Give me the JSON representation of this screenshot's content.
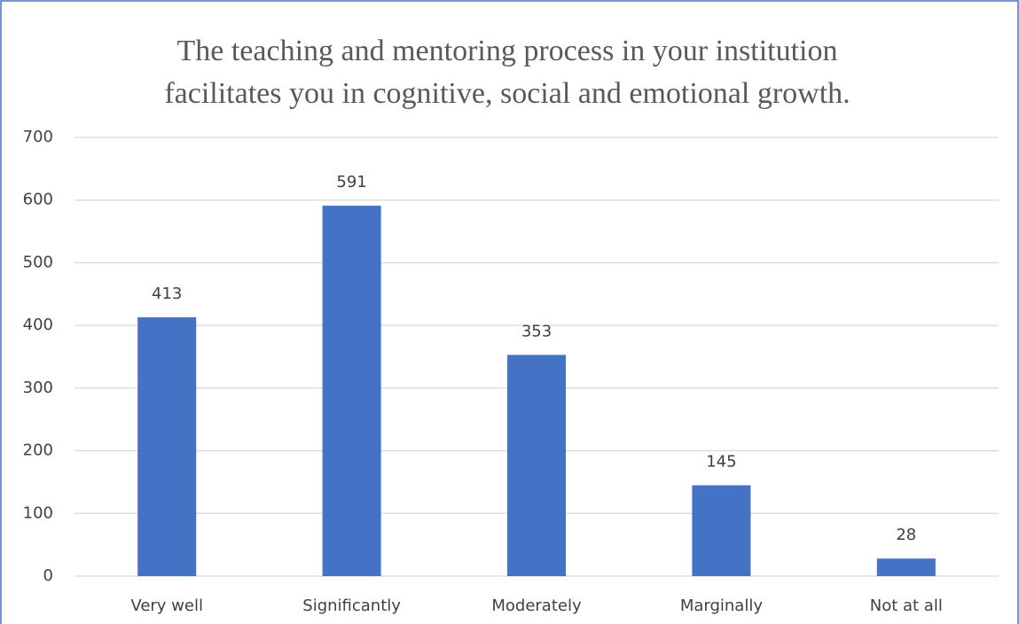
{
  "chart_data": {
    "type": "bar",
    "title": [
      "The teaching and mentoring process in your institution",
      "facilitates you in cognitive, social and emotional growth."
    ],
    "categories": [
      "Very well",
      "Significantly",
      "Moderately",
      "Marginally",
      "Not at all"
    ],
    "values": [
      413,
      591,
      353,
      145,
      28
    ],
    "color": "#4472c4",
    "ylim": [
      0,
      700
    ],
    "yticks": [
      0,
      100,
      200,
      300,
      400,
      500,
      600,
      700
    ],
    "grid": true,
    "data_labels": true
  }
}
